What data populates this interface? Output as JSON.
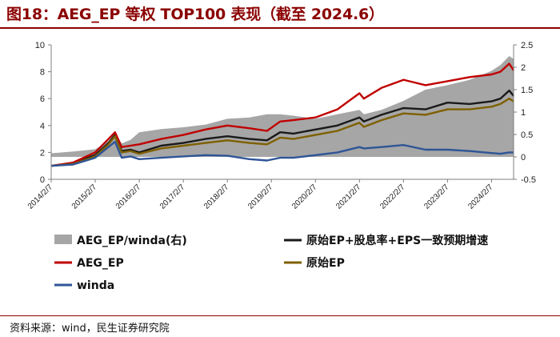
{
  "figure": {
    "title": "图18：AEG_EP 等权 TOP100 表现（截至 2024.6）",
    "source": "资料来源：wind，民生证券研究院"
  },
  "chart_data": {
    "type": "line",
    "title": "图18：AEG_EP 等权 TOP100 表现（截至 2024.6）",
    "x_tick_labels": [
      "2014/2/7",
      "2015/2/7",
      "2016/2/7",
      "2017/2/7",
      "2018/2/7",
      "2019/2/7",
      "2020/2/7",
      "2021/2/7",
      "2022/2/7",
      "2023/2/7",
      "2024/2/7"
    ],
    "x_range": [
      2014.0,
      2024.5
    ],
    "y_left": {
      "ylim": [
        0,
        10
      ],
      "ticks": [
        0,
        2,
        4,
        6,
        8,
        10
      ]
    },
    "y_right": {
      "ylim": [
        -0.5,
        2.5
      ],
      "ticks": [
        -0.5,
        0,
        0.5,
        1,
        1.5,
        2,
        2.5
      ],
      "tick_labels": [
        "-0.5",
        "0",
        "0.5",
        "1",
        "1.5",
        "2",
        "2.5"
      ]
    },
    "legend": [
      {
        "key": "ratio",
        "label": "AEG_EP/winda(右)",
        "color": "#a6a6a6",
        "kind": "area"
      },
      {
        "key": "combo",
        "label": "原始EP+股息率+EPS一致预期增速",
        "color": "#1a1a1a",
        "kind": "line"
      },
      {
        "key": "aeg",
        "label": "AEG_EP",
        "color": "#c00000",
        "kind": "line"
      },
      {
        "key": "ep",
        "label": "原始EP",
        "color": "#7f6000",
        "kind": "line"
      },
      {
        "key": "winda",
        "label": "winda",
        "color": "#2f5597",
        "kind": "line"
      }
    ],
    "series": [
      {
        "key": "ratio",
        "name": "AEG_EP/winda(右)",
        "axis": "right",
        "kind": "area",
        "color": "#a6a6a6",
        "x": [
          2014.0,
          2014.5,
          2015.0,
          2015.3,
          2015.45,
          2015.6,
          2015.8,
          2016.0,
          2016.5,
          2017.0,
          2017.5,
          2018.0,
          2018.5,
          2018.9,
          2019.2,
          2019.5,
          2020.0,
          2020.5,
          2021.0,
          2021.1,
          2021.5,
          2022.0,
          2022.5,
          2023.0,
          2023.5,
          2024.0,
          2024.2,
          2024.4,
          2024.5
        ],
        "y": [
          0.08,
          0.12,
          0.17,
          0.35,
          0.55,
          0.3,
          0.38,
          0.55,
          0.62,
          0.66,
          0.72,
          0.85,
          0.88,
          0.95,
          0.95,
          0.92,
          0.85,
          0.95,
          1.05,
          0.95,
          1.05,
          1.25,
          1.5,
          1.6,
          1.72,
          1.92,
          2.05,
          2.25,
          2.18
        ]
      },
      {
        "key": "combo",
        "name": "原始EP+股息率+EPS一致预期增速",
        "axis": "left",
        "kind": "line",
        "color": "#1a1a1a",
        "x": [
          2014.0,
          2014.5,
          2015.0,
          2015.3,
          2015.45,
          2015.6,
          2015.8,
          2016.0,
          2016.5,
          2017.0,
          2017.5,
          2018.0,
          2018.5,
          2018.9,
          2019.2,
          2019.5,
          2020.0,
          2020.5,
          2021.0,
          2021.1,
          2021.5,
          2022.0,
          2022.5,
          2023.0,
          2023.5,
          2024.0,
          2024.2,
          2024.4,
          2024.5
        ],
        "y": [
          1.0,
          1.2,
          1.8,
          2.7,
          3.3,
          2.1,
          2.2,
          2.0,
          2.5,
          2.7,
          3.0,
          3.2,
          3.0,
          2.9,
          3.5,
          3.4,
          3.7,
          4.0,
          4.6,
          4.3,
          4.8,
          5.3,
          5.2,
          5.7,
          5.6,
          5.8,
          6.0,
          6.6,
          6.2
        ]
      },
      {
        "key": "aeg",
        "name": "AEG_EP",
        "axis": "left",
        "kind": "line",
        "color": "#c00000",
        "x": [
          2014.0,
          2014.5,
          2015.0,
          2015.3,
          2015.45,
          2015.6,
          2015.8,
          2016.0,
          2016.5,
          2017.0,
          2017.5,
          2018.0,
          2018.5,
          2018.9,
          2019.2,
          2019.5,
          2020.0,
          2020.5,
          2021.0,
          2021.1,
          2021.5,
          2022.0,
          2022.5,
          2023.0,
          2023.5,
          2024.0,
          2024.2,
          2024.4,
          2024.5
        ],
        "y": [
          1.0,
          1.25,
          2.0,
          3.0,
          3.5,
          2.4,
          2.5,
          2.6,
          3.0,
          3.3,
          3.7,
          4.0,
          3.8,
          3.6,
          4.3,
          4.4,
          4.6,
          5.2,
          6.4,
          6.0,
          6.8,
          7.4,
          7.0,
          7.3,
          7.6,
          7.8,
          8.0,
          8.6,
          8.1
        ]
      },
      {
        "key": "ep",
        "name": "原始EP",
        "axis": "left",
        "kind": "line",
        "color": "#7f6000",
        "x": [
          2014.0,
          2014.5,
          2015.0,
          2015.3,
          2015.45,
          2015.6,
          2015.8,
          2016.0,
          2016.5,
          2017.0,
          2017.5,
          2018.0,
          2018.5,
          2018.9,
          2019.2,
          2019.5,
          2020.0,
          2020.5,
          2021.0,
          2021.1,
          2021.5,
          2022.0,
          2022.5,
          2023.0,
          2023.5,
          2024.0,
          2024.2,
          2024.4,
          2024.5
        ],
        "y": [
          1.0,
          1.15,
          1.7,
          2.6,
          3.2,
          2.0,
          2.1,
          1.9,
          2.3,
          2.5,
          2.7,
          2.9,
          2.7,
          2.6,
          3.1,
          3.0,
          3.3,
          3.6,
          4.2,
          3.9,
          4.4,
          4.9,
          4.8,
          5.2,
          5.2,
          5.4,
          5.6,
          6.0,
          5.8
        ]
      },
      {
        "key": "winda",
        "name": "winda",
        "axis": "left",
        "kind": "line",
        "color": "#2f5597",
        "x": [
          2014.0,
          2014.5,
          2015.0,
          2015.3,
          2015.45,
          2015.6,
          2015.8,
          2016.0,
          2016.5,
          2017.0,
          2017.5,
          2018.0,
          2018.5,
          2018.9,
          2019.2,
          2019.5,
          2020.0,
          2020.5,
          2021.0,
          2021.1,
          2021.5,
          2022.0,
          2022.5,
          2023.0,
          2023.5,
          2024.0,
          2024.2,
          2024.4,
          2024.5
        ],
        "y": [
          1.0,
          1.1,
          1.6,
          2.4,
          2.8,
          1.6,
          1.7,
          1.5,
          1.6,
          1.7,
          1.8,
          1.75,
          1.5,
          1.4,
          1.6,
          1.6,
          1.8,
          2.0,
          2.4,
          2.3,
          2.4,
          2.55,
          2.2,
          2.2,
          2.1,
          1.95,
          1.9,
          2.0,
          2.0
        ]
      }
    ]
  }
}
